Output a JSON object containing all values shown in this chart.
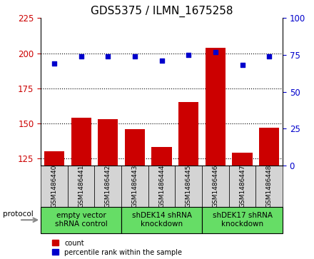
{
  "title": "GDS5375 / ILMN_1675258",
  "samples": [
    "GSM1486440",
    "GSM1486441",
    "GSM1486442",
    "GSM1486443",
    "GSM1486444",
    "GSM1486445",
    "GSM1486446",
    "GSM1486447",
    "GSM1486448"
  ],
  "counts": [
    130,
    154,
    153,
    146,
    133,
    165,
    204,
    129,
    147
  ],
  "percentiles": [
    69,
    74,
    74,
    74,
    71,
    75,
    77,
    68,
    74
  ],
  "groups": [
    {
      "label": "empty vector\nshRNA control",
      "start": 0,
      "end": 3
    },
    {
      "label": "shDEK14 shRNA\nknockdown",
      "start": 3,
      "end": 6
    },
    {
      "label": "shDEK17 shRNA\nknockdown",
      "start": 6,
      "end": 9
    }
  ],
  "ylim_left": [
    120,
    225
  ],
  "ylim_right": [
    0,
    100
  ],
  "yticks_left": [
    125,
    150,
    175,
    200,
    225
  ],
  "yticks_right": [
    0,
    25,
    50,
    75,
    100
  ],
  "bar_color": "#cc0000",
  "dot_color": "#0000cc",
  "sample_box_color": "#d4d4d4",
  "group_box_color": "#66dd66",
  "title_fontsize": 11,
  "tick_fontsize": 8.5,
  "sample_fontsize": 6.5,
  "group_fontsize": 7.5
}
